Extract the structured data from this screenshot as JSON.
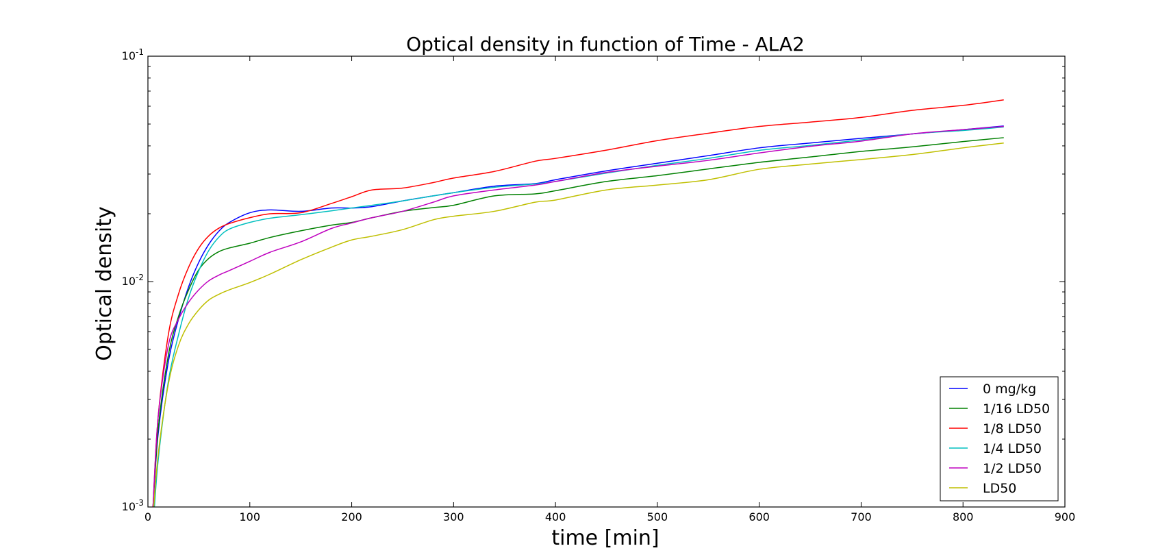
{
  "chart_data": {
    "type": "line",
    "title": "Optical density in function of Time - ALA2",
    "xlabel": "time [min]",
    "ylabel": "Optical density",
    "xlim": [
      0,
      900
    ],
    "ylim": [
      0.001,
      0.1
    ],
    "yscale": "log",
    "grid": false,
    "legend_position": "lower-right",
    "xticks": [
      {
        "value": 0,
        "label": "0"
      },
      {
        "value": 100,
        "label": "100"
      },
      {
        "value": 200,
        "label": "200"
      },
      {
        "value": 300,
        "label": "300"
      },
      {
        "value": 400,
        "label": "400"
      },
      {
        "value": 500,
        "label": "500"
      },
      {
        "value": 600,
        "label": "600"
      },
      {
        "value": 700,
        "label": "700"
      },
      {
        "value": 800,
        "label": "800"
      },
      {
        "value": 900,
        "label": "900"
      }
    ],
    "yticks": [
      {
        "value": 0.001,
        "base": "10",
        "exp": "-3"
      },
      {
        "value": 0.01,
        "base": "10",
        "exp": "-2"
      },
      {
        "value": 0.1,
        "base": "10",
        "exp": "-1"
      }
    ],
    "x": [
      5,
      10,
      20,
      30,
      40,
      50,
      60,
      70,
      80,
      100,
      120,
      150,
      180,
      200,
      220,
      250,
      280,
      300,
      340,
      380,
      400,
      450,
      500,
      550,
      600,
      650,
      700,
      750,
      800,
      840
    ],
    "series": [
      {
        "name": "0 mg/kg",
        "color": "#0000ff",
        "values": [
          0.001,
          0.0021,
          0.0044,
          0.0068,
          0.0095,
          0.0122,
          0.0147,
          0.0168,
          0.0183,
          0.0202,
          0.0208,
          0.0205,
          0.0212,
          0.0212,
          0.0215,
          0.0228,
          0.024,
          0.0248,
          0.0265,
          0.0272,
          0.0283,
          0.031,
          0.0335,
          0.0362,
          0.0392,
          0.0412,
          0.0432,
          0.0452,
          0.0472,
          0.049
        ]
      },
      {
        "name": "1/16 LD50",
        "color": "#008000",
        "values": [
          0.001,
          0.0022,
          0.0047,
          0.007,
          0.0092,
          0.0113,
          0.0127,
          0.0136,
          0.0141,
          0.0148,
          0.0157,
          0.0168,
          0.0178,
          0.0183,
          0.0192,
          0.0205,
          0.0213,
          0.0218,
          0.024,
          0.0245,
          0.0253,
          0.0278,
          0.0295,
          0.0316,
          0.0338,
          0.0357,
          0.0378,
          0.0396,
          0.0418,
          0.0435
        ]
      },
      {
        "name": "1/8 LD50",
        "color": "#ff0000",
        "values": [
          0.001,
          0.0025,
          0.0058,
          0.0088,
          0.0116,
          0.0141,
          0.016,
          0.0173,
          0.0181,
          0.0192,
          0.02,
          0.0202,
          0.0222,
          0.0238,
          0.0255,
          0.026,
          0.0275,
          0.0288,
          0.0308,
          0.0342,
          0.0352,
          0.0383,
          0.0422,
          0.0455,
          0.0488,
          0.051,
          0.0535,
          0.0575,
          0.0605,
          0.064
        ]
      },
      {
        "name": "1/4 LD50",
        "color": "#00bfbf",
        "values": [
          0.0008,
          0.0016,
          0.0036,
          0.0058,
          0.0085,
          0.0112,
          0.0138,
          0.0158,
          0.0171,
          0.0183,
          0.0191,
          0.0198,
          0.0206,
          0.0212,
          0.0218,
          0.0228,
          0.024,
          0.0248,
          0.0262,
          0.0271,
          0.0278,
          0.0303,
          0.0328,
          0.0352,
          0.0382,
          0.0402,
          0.0425,
          0.0452,
          0.0468,
          0.0485
        ]
      },
      {
        "name": "1/2 LD50",
        "color": "#bf00bf",
        "values": [
          0.001,
          0.0025,
          0.0052,
          0.0068,
          0.0081,
          0.0092,
          0.0101,
          0.0107,
          0.0112,
          0.0123,
          0.0135,
          0.015,
          0.0172,
          0.0182,
          0.0192,
          0.0205,
          0.0225,
          0.024,
          0.0255,
          0.0268,
          0.0278,
          0.0305,
          0.0325,
          0.0345,
          0.0372,
          0.0398,
          0.042,
          0.0452,
          0.0472,
          0.0488
        ]
      },
      {
        "name": "LD50",
        "color": "#bfbf00",
        "values": [
          0.0009,
          0.0017,
          0.0035,
          0.0052,
          0.0065,
          0.0075,
          0.0083,
          0.0088,
          0.0092,
          0.0099,
          0.0108,
          0.0125,
          0.0142,
          0.0153,
          0.0159,
          0.017,
          0.0188,
          0.0195,
          0.0205,
          0.0225,
          0.023,
          0.0255,
          0.0268,
          0.0283,
          0.0315,
          0.0332,
          0.0348,
          0.0366,
          0.0392,
          0.0412
        ]
      }
    ]
  }
}
